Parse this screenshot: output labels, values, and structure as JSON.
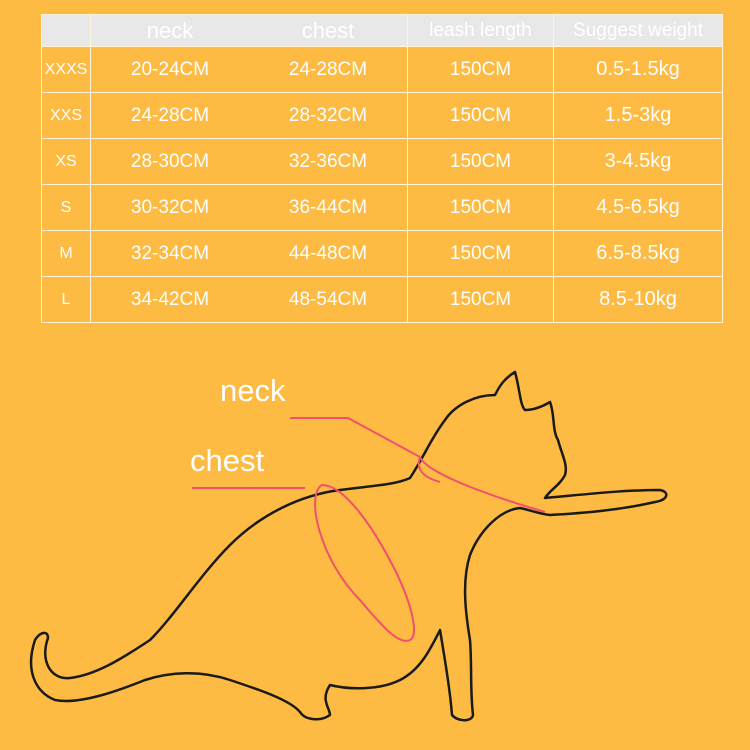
{
  "table": {
    "headers": [
      "",
      "neck",
      "chest",
      "leash length",
      "Suggest weight"
    ],
    "rows": [
      {
        "size": "XXXS",
        "neck": "20-24CM",
        "chest": "24-28CM",
        "leash": "150CM",
        "weight": "0.5-1.5kg"
      },
      {
        "size": "XXS",
        "neck": "24-28CM",
        "chest": "28-32CM",
        "leash": "150CM",
        "weight": "1.5-3kg"
      },
      {
        "size": "XS",
        "neck": "28-30CM",
        "chest": "32-36CM",
        "leash": "150CM",
        "weight": "3-4.5kg"
      },
      {
        "size": "S",
        "neck": "30-32CM",
        "chest": "36-44CM",
        "leash": "150CM",
        "weight": "4.5-6.5kg"
      },
      {
        "size": "M",
        "neck": "32-34CM",
        "chest": "44-48CM",
        "leash": "150CM",
        "weight": "6.5-8.5kg"
      },
      {
        "size": "L",
        "neck": "34-42CM",
        "chest": "48-54CM",
        "leash": "150CM",
        "weight": "8.5-10kg"
      }
    ]
  },
  "diagram": {
    "neck_label": "neck",
    "chest_label": "chest"
  },
  "colors": {
    "background": "#fdbb43",
    "header": "#e8e8e8",
    "measure_line": "#f0506e",
    "outline": "#1a1a1a"
  }
}
